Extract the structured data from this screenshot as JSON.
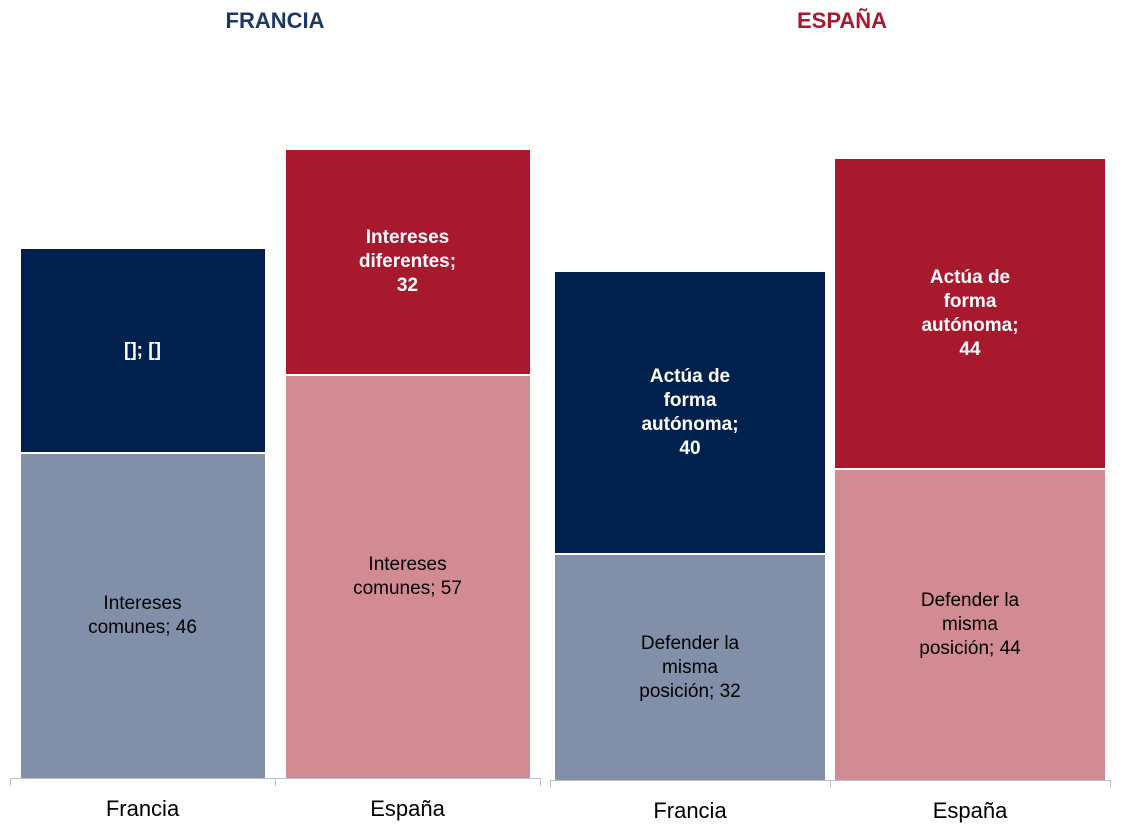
{
  "chart_data": [
    {
      "type": "bar",
      "stacked": true,
      "title": "FRANCIA",
      "title_color": "#1f3864",
      "categories": [
        "Francia",
        "España"
      ],
      "ylim": [
        0,
        100
      ],
      "series": [
        {
          "colors": [
            "#8190a8",
            "#d38b93"
          ],
          "label_colors": [
            "#000000",
            "#000000"
          ],
          "bold": false,
          "values": [
            46,
            57
          ],
          "value_labels": [
            "Intereses comunes; 46",
            "Intereses comunes; 57"
          ]
        },
        {
          "colors": [
            "#00204e",
            "#a8192e"
          ],
          "label_colors": [
            "#ffffff",
            "#ffffff"
          ],
          "bold": true,
          "values": [
            29,
            32
          ],
          "value_labels": [
            "[]; []",
            "Intereses diferentes; 32"
          ]
        }
      ]
    },
    {
      "type": "bar",
      "stacked": true,
      "title": "ESPAÑA",
      "title_color": "#a8192e",
      "categories": [
        "Francia",
        "España"
      ],
      "ylim": [
        0,
        100
      ],
      "series": [
        {
          "colors": [
            "#8190a8",
            "#d38b93"
          ],
          "label_colors": [
            "#000000",
            "#000000"
          ],
          "bold": false,
          "values": [
            32,
            44
          ],
          "value_labels": [
            "Defender la misma posición; 32",
            "Defender la misma posición; 44"
          ]
        },
        {
          "colors": [
            "#00204e",
            "#a8192e"
          ],
          "label_colors": [
            "#ffffff",
            "#ffffff"
          ],
          "bold": true,
          "values": [
            40,
            44
          ],
          "value_labels": [
            "Actúa de forma autónoma; 40",
            "Actúa de forma autónoma; 44"
          ]
        }
      ]
    }
  ]
}
